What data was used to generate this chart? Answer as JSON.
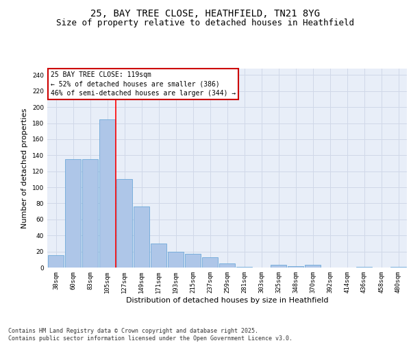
{
  "title1": "25, BAY TREE CLOSE, HEATHFIELD, TN21 8YG",
  "title2": "Size of property relative to detached houses in Heathfield",
  "xlabel": "Distribution of detached houses by size in Heathfield",
  "ylabel": "Number of detached properties",
  "categories": [
    "38sqm",
    "60sqm",
    "83sqm",
    "105sqm",
    "127sqm",
    "149sqm",
    "171sqm",
    "193sqm",
    "215sqm",
    "237sqm",
    "259sqm",
    "281sqm",
    "303sqm",
    "325sqm",
    "348sqm",
    "370sqm",
    "392sqm",
    "414sqm",
    "436sqm",
    "458sqm",
    "480sqm"
  ],
  "values": [
    15,
    135,
    135,
    185,
    110,
    76,
    30,
    20,
    17,
    13,
    5,
    1,
    0,
    3,
    2,
    3,
    0,
    0,
    1,
    0,
    1
  ],
  "bar_color": "#aec6e8",
  "bar_edge_color": "#5a9fd4",
  "grid_color": "#d0d8e8",
  "bg_color": "#e8eef8",
  "red_line_x": 3.5,
  "annotation_text": "25 BAY TREE CLOSE: 119sqm\n← 52% of detached houses are smaller (386)\n46% of semi-detached houses are larger (344) →",
  "annotation_box_color": "#ffffff",
  "annotation_border_color": "#cc0000",
  "ylim": [
    0,
    248
  ],
  "yticks": [
    0,
    20,
    40,
    60,
    80,
    100,
    120,
    140,
    160,
    180,
    200,
    220,
    240
  ],
  "footer": "Contains HM Land Registry data © Crown copyright and database right 2025.\nContains public sector information licensed under the Open Government Licence v3.0.",
  "title_fontsize": 10,
  "subtitle_fontsize": 9,
  "tick_fontsize": 6.5,
  "ylabel_fontsize": 8,
  "xlabel_fontsize": 8,
  "annotation_fontsize": 7,
  "footer_fontsize": 6
}
